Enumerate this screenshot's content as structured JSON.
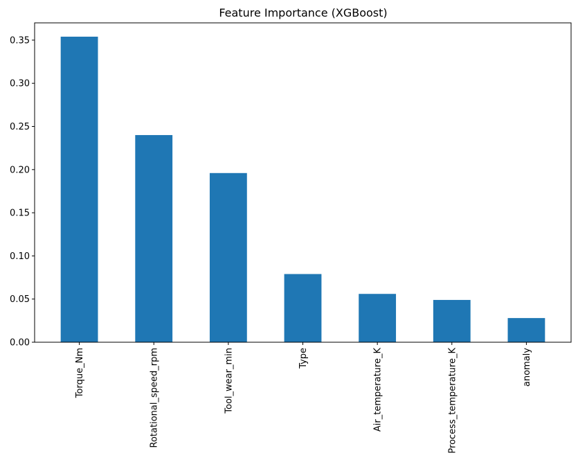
{
  "chart_data": {
    "type": "bar",
    "title": "Feature Importance (XGBoost)",
    "xlabel": "",
    "ylabel": "",
    "categories": [
      "Torque_Nm",
      "Rotational_speed_rpm",
      "Tool_wear_min",
      "Type",
      "Air_temperature_K",
      "Process_temperature_K",
      "anomaly"
    ],
    "values": [
      0.354,
      0.24,
      0.196,
      0.079,
      0.056,
      0.049,
      0.028
    ],
    "ylim": [
      0,
      0.37
    ],
    "yticks": [
      0.0,
      0.05,
      0.1,
      0.15,
      0.2,
      0.25,
      0.3,
      0.35
    ],
    "ytick_labels": [
      "0.00",
      "0.05",
      "0.10",
      "0.15",
      "0.20",
      "0.25",
      "0.30",
      "0.35"
    ],
    "grid": false,
    "bar_color": "#1f77b4"
  }
}
